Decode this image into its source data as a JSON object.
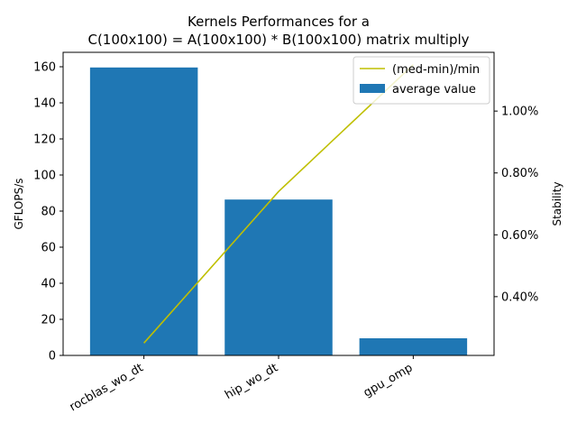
{
  "chart_data": {
    "type": "bar",
    "title": "Kernels Performances for a",
    "subtitle": "C(100x100) = A(100x100) * B(100x100) matrix multiply",
    "categories": [
      "rocblas_wo_dt",
      "hip_wo_dt",
      "gpu_omp"
    ],
    "ylabel": "GFLOPS/s",
    "ylim": [
      0,
      168
    ],
    "yticks": [
      0,
      20,
      40,
      60,
      80,
      100,
      120,
      140,
      160
    ],
    "y2label": "Stability",
    "y2lim": [
      0.0021,
      0.0119
    ],
    "y2ticks": [
      0.004,
      0.006,
      0.008,
      0.01
    ],
    "y2tick_labels": [
      "0.40%",
      "0.60%",
      "0.80%",
      "1.00%"
    ],
    "series": [
      {
        "name": "average value",
        "type": "bar",
        "axis": "left",
        "values": [
          159.6,
          86.4,
          9.5
        ],
        "color": "#1f77b4"
      },
      {
        "name": "(med-min)/min",
        "type": "line",
        "axis": "right",
        "values": [
          0.0025,
          0.0074,
          0.0115
        ],
        "color": "#bfbf00"
      }
    ],
    "legend": {
      "position": "top-right",
      "entries": [
        "(med-min)/min",
        "average value"
      ]
    },
    "grid": false
  }
}
